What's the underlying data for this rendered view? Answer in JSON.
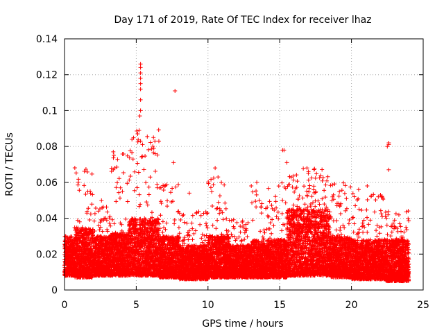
{
  "chart_data": {
    "type": "scatter",
    "title": "Day 171 of 2019, Rate Of TEC Index for receiver lhaz",
    "xlabel": "GPS time / hours",
    "ylabel": "ROTI / TECUs",
    "xlim": [
      0,
      25
    ],
    "ylim": [
      0,
      0.14
    ],
    "x_ticks": [
      0,
      5,
      10,
      15,
      20,
      25
    ],
    "y_ticks": [
      0,
      0.02,
      0.04,
      0.06,
      0.08,
      0.1,
      0.12,
      0.14
    ],
    "x_tick_labels": [
      "0",
      "5",
      "10",
      "15",
      "20",
      "25"
    ],
    "y_tick_labels": [
      "0",
      "0.02",
      "0.04",
      "0.06",
      "0.08",
      "0.1",
      "0.12",
      "0.14"
    ],
    "grid": true,
    "marker": "+",
    "series": [
      {
        "name": "ROTI",
        "color": "#ff0000",
        "notable_points": [
          {
            "x": 5.3,
            "y": 0.126
          },
          {
            "x": 5.3,
            "y": 0.124
          },
          {
            "x": 5.3,
            "y": 0.121
          },
          {
            "x": 5.3,
            "y": 0.118
          },
          {
            "x": 5.3,
            "y": 0.115
          },
          {
            "x": 5.3,
            "y": 0.112
          },
          {
            "x": 5.3,
            "y": 0.106
          },
          {
            "x": 5.3,
            "y": 0.1
          },
          {
            "x": 5.25,
            "y": 0.097
          },
          {
            "x": 7.7,
            "y": 0.111
          },
          {
            "x": 5.2,
            "y": 0.089
          },
          {
            "x": 5.1,
            "y": 0.087
          },
          {
            "x": 5.3,
            "y": 0.083
          },
          {
            "x": 4.7,
            "y": 0.084
          },
          {
            "x": 15.2,
            "y": 0.078
          },
          {
            "x": 15.3,
            "y": 0.078
          },
          {
            "x": 22.6,
            "y": 0.082
          },
          {
            "x": 22.6,
            "y": 0.081
          },
          {
            "x": 22.5,
            "y": 0.08
          },
          {
            "x": 3.4,
            "y": 0.077
          },
          {
            "x": 6.2,
            "y": 0.085
          },
          {
            "x": 6.3,
            "y": 0.083
          },
          {
            "x": 7.6,
            "y": 0.071
          },
          {
            "x": 22.6,
            "y": 0.067
          },
          {
            "x": 10.5,
            "y": 0.068
          },
          {
            "x": 3.4,
            "y": 0.067
          },
          {
            "x": 3.5,
            "y": 0.068
          },
          {
            "x": 16.9,
            "y": 0.068
          },
          {
            "x": 17.0,
            "y": 0.066
          },
          {
            "x": 10.7,
            "y": 0.063
          },
          {
            "x": 20.5,
            "y": 0.056
          },
          {
            "x": 21.1,
            "y": 0.058
          },
          {
            "x": 8.7,
            "y": 0.054
          },
          {
            "x": 13.4,
            "y": 0.06
          },
          {
            "x": 15.5,
            "y": 0.071
          }
        ],
        "bands": [
          {
            "x_start": 0.0,
            "x_end": 0.7,
            "typical_low": 0.008,
            "typical_high": 0.028,
            "burst_high": 0.03
          },
          {
            "x_start": 0.7,
            "x_end": 2.0,
            "typical_low": 0.007,
            "typical_high": 0.035,
            "burst_high": 0.07
          },
          {
            "x_start": 2.0,
            "x_end": 3.2,
            "typical_low": 0.008,
            "typical_high": 0.03,
            "burst_high": 0.05
          },
          {
            "x_start": 3.2,
            "x_end": 4.5,
            "typical_low": 0.008,
            "typical_high": 0.032,
            "burst_high": 0.077
          },
          {
            "x_start": 4.5,
            "x_end": 6.6,
            "typical_low": 0.008,
            "typical_high": 0.04,
            "burst_high": 0.09
          },
          {
            "x_start": 6.6,
            "x_end": 8.0,
            "typical_low": 0.007,
            "typical_high": 0.03,
            "burst_high": 0.06
          },
          {
            "x_start": 8.0,
            "x_end": 10.0,
            "typical_low": 0.006,
            "typical_high": 0.025,
            "burst_high": 0.045
          },
          {
            "x_start": 10.0,
            "x_end": 11.5,
            "typical_low": 0.007,
            "typical_high": 0.03,
            "burst_high": 0.065
          },
          {
            "x_start": 11.5,
            "x_end": 13.0,
            "typical_low": 0.007,
            "typical_high": 0.025,
            "burst_high": 0.04
          },
          {
            "x_start": 13.0,
            "x_end": 15.5,
            "typical_low": 0.007,
            "typical_high": 0.028,
            "burst_high": 0.06
          },
          {
            "x_start": 15.5,
            "x_end": 18.5,
            "typical_low": 0.008,
            "typical_high": 0.045,
            "burst_high": 0.068
          },
          {
            "x_start": 18.5,
            "x_end": 20.0,
            "typical_low": 0.007,
            "typical_high": 0.03,
            "burst_high": 0.06
          },
          {
            "x_start": 20.0,
            "x_end": 22.3,
            "typical_low": 0.006,
            "typical_high": 0.028,
            "burst_high": 0.055
          },
          {
            "x_start": 22.3,
            "x_end": 24.0,
            "typical_low": 0.005,
            "typical_high": 0.028,
            "burst_high": 0.045
          }
        ]
      }
    ]
  }
}
